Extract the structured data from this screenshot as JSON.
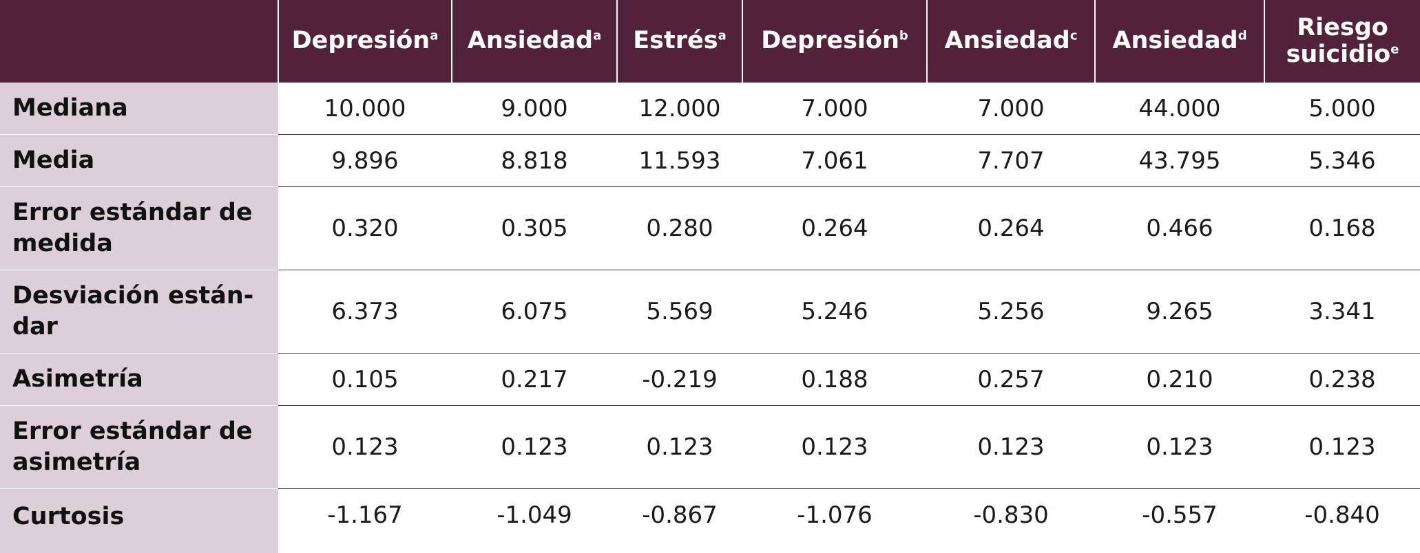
{
  "columns": [
    {
      "label": "Depresión",
      "sup": "a"
    },
    {
      "label": "Ansiedad",
      "sup": "a"
    },
    {
      "label": "Estrés",
      "sup": "a"
    },
    {
      "label": "Depresión",
      "sup": "b"
    },
    {
      "label": "Ansiedad",
      "sup": "c"
    },
    {
      "label": "Ansiedad",
      "sup": "d"
    },
    {
      "label_line1": "Riesgo",
      "label_line2": "suicidio",
      "sup": "e"
    }
  ],
  "rows": [
    {
      "label": "Mediana",
      "values": [
        "10.000",
        "9.000",
        "12.000",
        "7.000",
        "7.000",
        "44.000",
        "5.000"
      ]
    },
    {
      "label": "Media",
      "values": [
        "9.896",
        "8.818",
        "11.593",
        "7.061",
        "7.707",
        "43.795",
        "5.346"
      ]
    },
    {
      "label_line1": "Error estándar de",
      "label_line2": "medida",
      "values": [
        "0.320",
        "0.305",
        "0.280",
        "0.264",
        "0.264",
        "0.466",
        "0.168"
      ]
    },
    {
      "label_line1": "Desviación están-",
      "label_line2": "dar",
      "values": [
        "6.373",
        "6.075",
        "5.569",
        "5.246",
        "5.256",
        "9.265",
        "3.341"
      ]
    },
    {
      "label": "Asimetría",
      "values": [
        "0.105",
        "0.217",
        "-0.219",
        "0.188",
        "0.257",
        "0.210",
        "0.238"
      ]
    },
    {
      "label_line1": "Error estándar de",
      "label_line2": "asimetría",
      "values": [
        "0.123",
        "0.123",
        "0.123",
        "0.123",
        "0.123",
        "0.123",
        "0.123"
      ]
    },
    {
      "label": "Curtosis",
      "values": [
        "-1.167",
        "-1.049",
        "-0.867",
        "-1.076",
        "-0.830",
        "-0.557",
        "-0.840"
      ]
    }
  ],
  "colors": {
    "header_background": "#52213a",
    "label_column_background": "#dccfd8",
    "header_text": "#ffffff"
  }
}
